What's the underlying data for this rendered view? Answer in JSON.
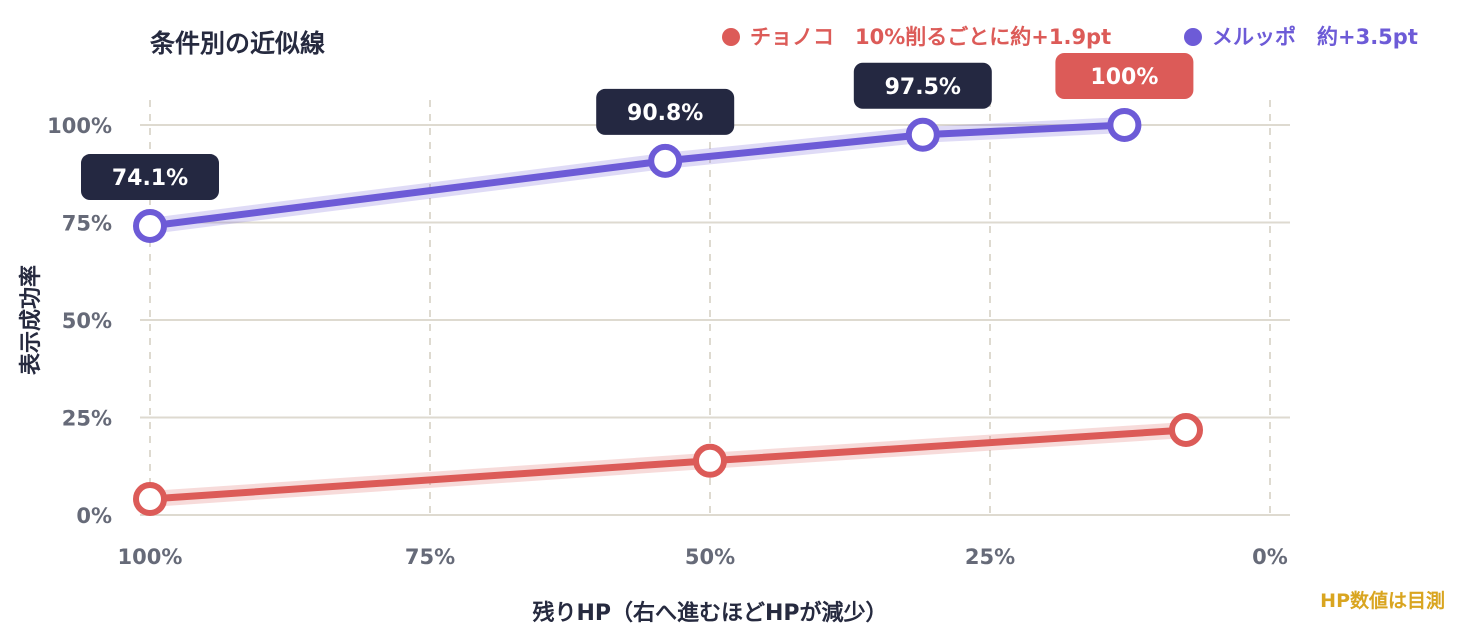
{
  "chart_data": {
    "type": "line",
    "title": "条件別の近似線",
    "xlabel": "残りHP（右へ進むほどHPが減少）",
    "ylabel": "表示成功率",
    "note": "HP数値は目測",
    "x_ticks": [
      {
        "value": 100,
        "label": "100%"
      },
      {
        "value": 75,
        "label": "75%"
      },
      {
        "value": 50,
        "label": "50%"
      },
      {
        "value": 25,
        "label": "25%"
      },
      {
        "value": 0,
        "label": "0%"
      }
    ],
    "y_ticks": [
      {
        "value": 0,
        "label": "0%"
      },
      {
        "value": 25,
        "label": "25%"
      },
      {
        "value": 50,
        "label": "50%"
      },
      {
        "value": 75,
        "label": "75%"
      },
      {
        "value": 100,
        "label": "100%"
      }
    ],
    "xlim": [
      100,
      0
    ],
    "ylim": [
      0,
      100
    ],
    "grid": true,
    "legend_position": "top-right",
    "series": [
      {
        "name": "チョノコ",
        "legend_label": "チョノコ　10%削るごとに約+1.9pt",
        "color": "#dc5b58",
        "points": [
          {
            "x": 100,
            "y": 4.1
          },
          {
            "x": 50,
            "y": 13.9
          },
          {
            "x": 7.5,
            "y": 21.8
          }
        ],
        "labels": []
      },
      {
        "name": "メルッポ",
        "legend_label": "メルッポ　約+3.5pt",
        "color": "#6d5bd7",
        "points": [
          {
            "x": 100,
            "y": 74.1
          },
          {
            "x": 54,
            "y": 90.8
          },
          {
            "x": 31,
            "y": 97.5
          },
          {
            "x": 13,
            "y": 100
          }
        ],
        "labels": [
          {
            "x": 100,
            "y": 74.1,
            "text": "74.1%",
            "color": "#242841"
          },
          {
            "x": 54,
            "y": 90.8,
            "text": "90.8%",
            "color": "#242841"
          },
          {
            "x": 31,
            "y": 97.5,
            "text": "97.5%",
            "color": "#242841"
          },
          {
            "x": 13,
            "y": 100,
            "text": "100%",
            "color": "#dc5b58"
          }
        ]
      }
    ]
  },
  "colors": {
    "grid": "#dedad0",
    "tick_text": "#666a78",
    "dark": "#262a3f"
  }
}
